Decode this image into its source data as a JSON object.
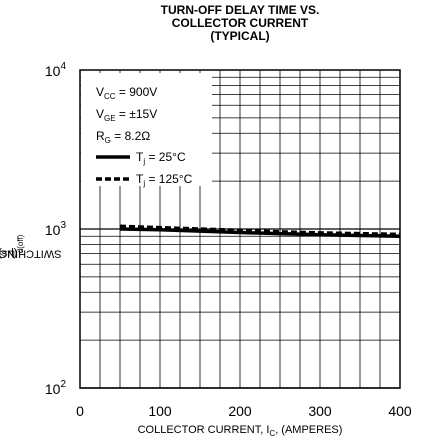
{
  "chart_data": {
    "type": "line",
    "title_line_1": "TURN-OFF DELAY TIME VS.",
    "title_line_2": "COLLECTOR CURRENT",
    "subtitle": "(TYPICAL)",
    "xlabel_prefix": "COLLECTOR CURRENT, I",
    "xlabel_sub": "C",
    "xlabel_suffix": ", (AMPERES)",
    "ylabel_prefix": "SWITCHING TIME, t",
    "ylabel_sub": "d(off)",
    "ylabel_suffix": ", (µs)",
    "xlim": [
      0,
      400
    ],
    "ylim": [
      100,
      10000
    ],
    "yscale": "log",
    "grid": true,
    "x_ticks": [
      0,
      100,
      200,
      300,
      400
    ],
    "y_ticks": [
      {
        "base": "10",
        "exp": "2",
        "value": 100
      },
      {
        "base": "10",
        "exp": "3",
        "value": 1000
      },
      {
        "base": "10",
        "exp": "4",
        "value": 10000
      }
    ],
    "conditions": [
      {
        "main": "V",
        "sub": "CC",
        "rest": " = 900V"
      },
      {
        "main": "V",
        "sub": "GE",
        "rest": " = ±15V"
      },
      {
        "main": "R",
        "sub": "G",
        "rest": " = 8.2Ω"
      }
    ],
    "series": [
      {
        "name_main": "T",
        "name_sub": "j",
        "name_rest": " = 25°C",
        "style": "solid",
        "x": [
          50,
          100,
          150,
          200,
          250,
          300,
          350,
          400
        ],
        "y": [
          1000,
          990,
          970,
          950,
          935,
          920,
          910,
          900
        ]
      },
      {
        "name_main": "T",
        "name_sub": "j",
        "name_rest": " = 125°C",
        "style": "dashed",
        "x": [
          50,
          100,
          150,
          200,
          250,
          300,
          350,
          400
        ],
        "y": [
          1040,
          1020,
          1000,
          980,
          960,
          945,
          935,
          925
        ]
      }
    ]
  }
}
